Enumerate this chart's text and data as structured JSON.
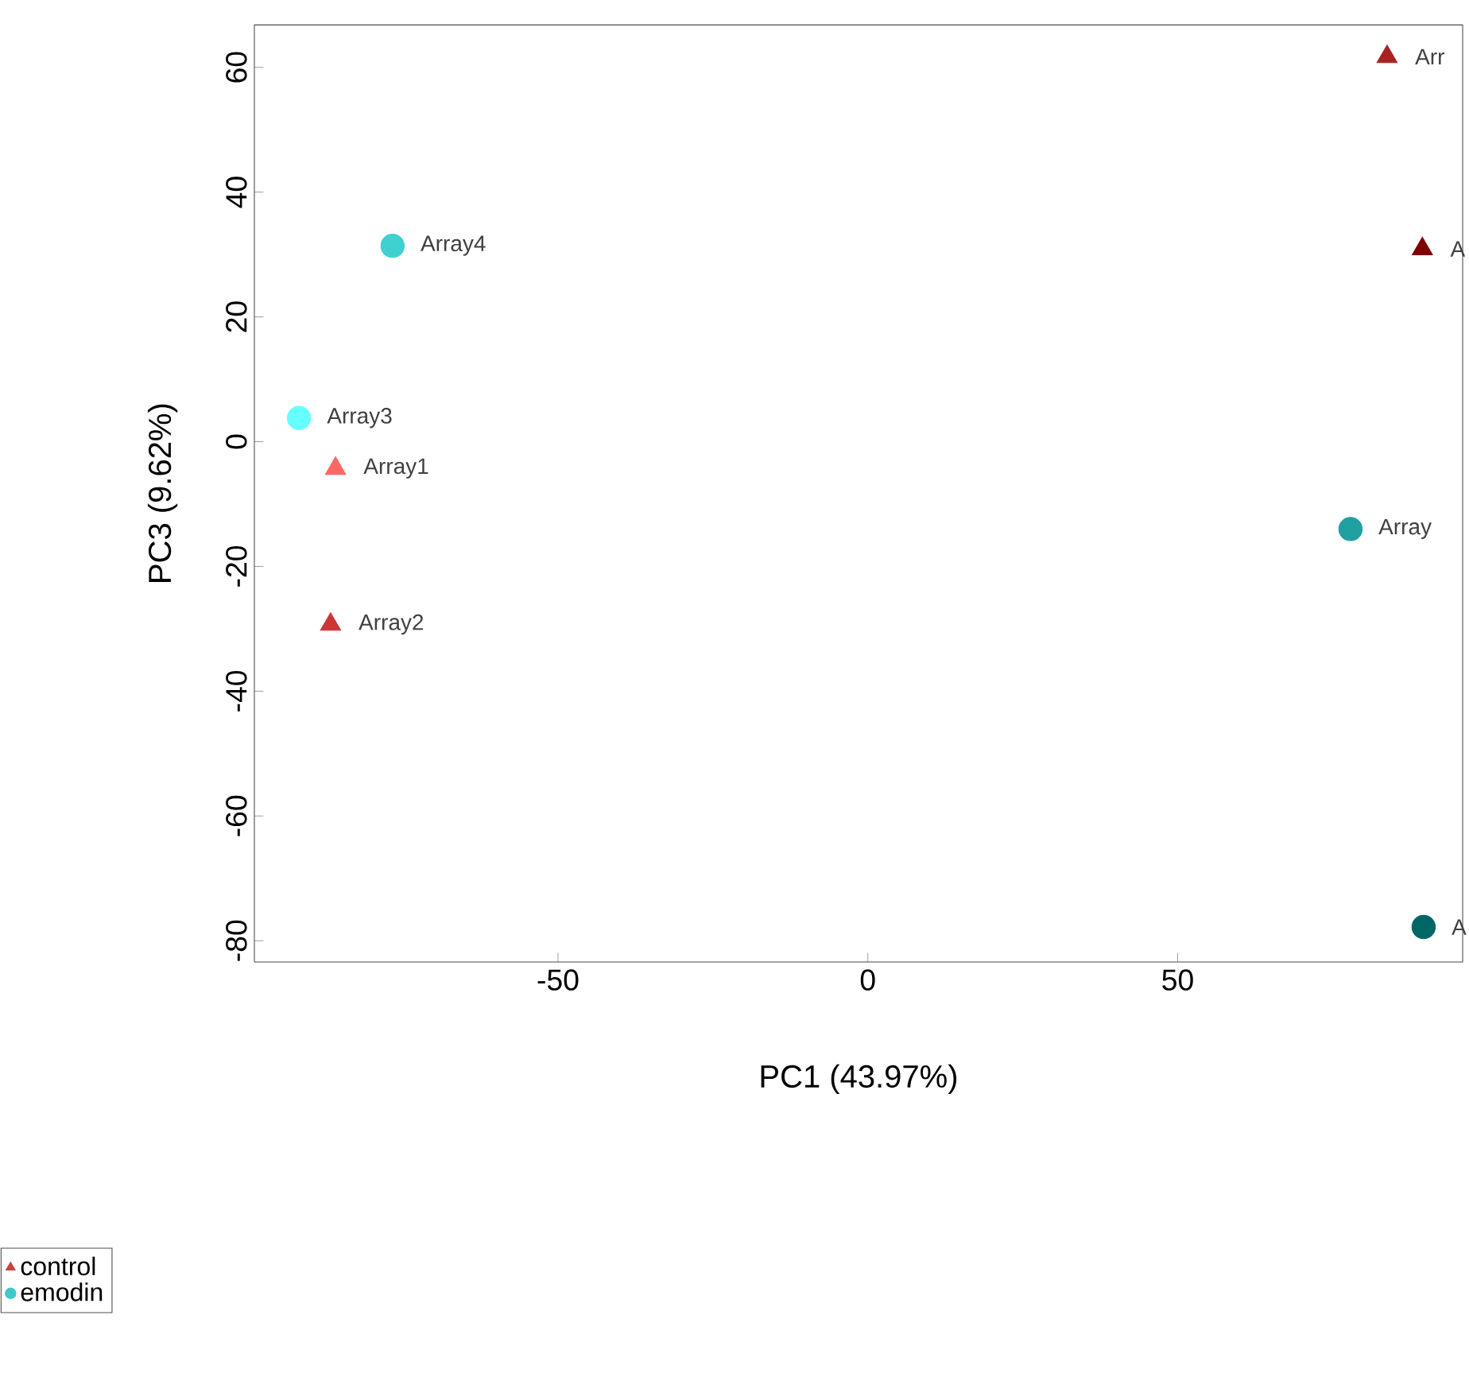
{
  "chart_data": {
    "type": "scatter",
    "xlabel": "PC1 (43.97%)",
    "ylabel": "PC3 (9.62%)",
    "xlim": [
      -99,
      96
    ],
    "ylim": [
      -83.4,
      66.8
    ],
    "xticks": [
      -50,
      0,
      50
    ],
    "yticks": [
      -80,
      -60,
      -40,
      -20,
      0,
      20,
      40,
      60
    ],
    "grid": false,
    "legend": "bottom left",
    "series": [
      {
        "name": "control",
        "color": "#cd4040",
        "marker": "triangle",
        "x": [
          -85.9,
          -86.7,
          83.8,
          89.5
        ],
        "values": [
          -4.3,
          -29.3,
          61.7,
          30.9
        ],
        "colors": [
          "#ff6666",
          "#cc3636",
          "#a82222",
          "#800000"
        ]
      },
      {
        "name": "emodin",
        "color": "#40c8c8",
        "marker": "circle",
        "x": [
          -91.8,
          -76.7,
          77.9,
          89.7
        ],
        "values": [
          3.8,
          31.4,
          -14.0,
          -77.8
        ],
        "colors": [
          "#66ffff",
          "#40d0d0",
          "#20a0a0",
          "#006666"
        ]
      }
    ],
    "annotations": [
      {
        "text": "Array1",
        "x": -85.9,
        "y": -4.3
      },
      {
        "text": "Array2",
        "x": -86.7,
        "y": -29.3
      },
      {
        "text": "Arr",
        "x": 83.8,
        "y": 61.7
      },
      {
        "text": "A",
        "x": 89.5,
        "y": 30.9
      },
      {
        "text": "Array3",
        "x": -91.8,
        "y": 3.8
      },
      {
        "text": "Array4",
        "x": -76.7,
        "y": 31.4
      },
      {
        "text": "Array",
        "x": 77.9,
        "y": -14.0
      },
      {
        "text": "A",
        "x": 89.7,
        "y": -77.8
      }
    ]
  }
}
